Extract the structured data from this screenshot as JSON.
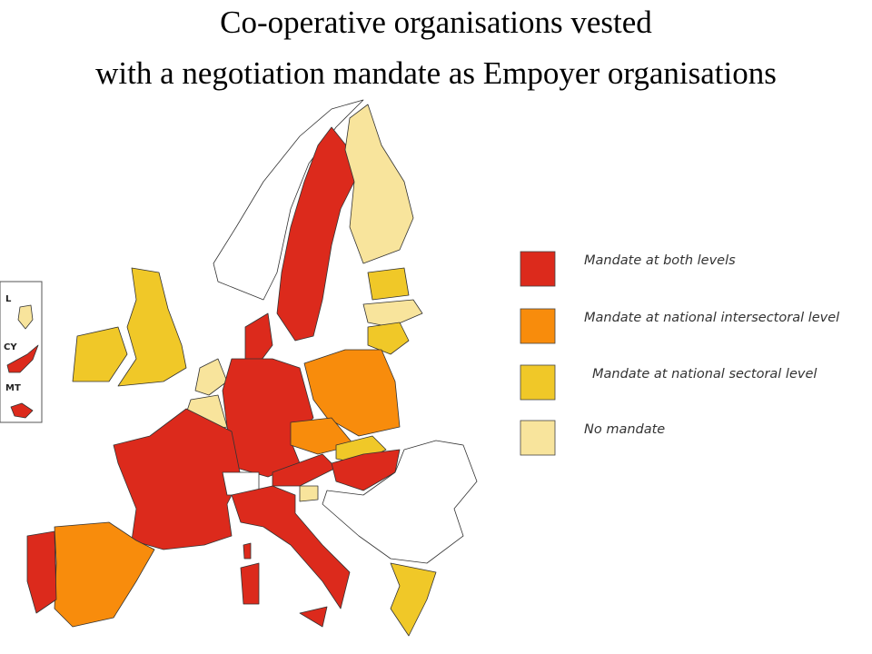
{
  "title": [
    "Co-operative organisations vested",
    "with a negotiation mandate as Empoyer organisations"
  ],
  "legend": [
    {
      "label": "Mandate at both levels",
      "color": "#dc2a1c"
    },
    {
      "label": "Mandate at national intersectoral level",
      "color": "#f88c0c"
    },
    {
      "label": "Mandate at national sectoral level",
      "color": "#f0c828"
    },
    {
      "label": "No mandate",
      "color": "#f8e49c"
    }
  ],
  "inset_labels": [
    "L",
    "CY",
    "MT"
  ]
}
